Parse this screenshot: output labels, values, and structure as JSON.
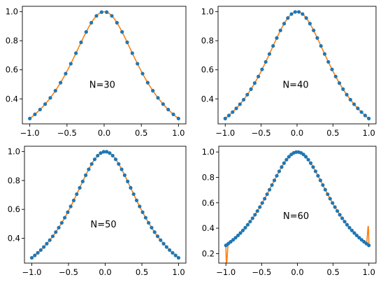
{
  "chart_data": [
    {
      "type": "line",
      "annotation": "N=30",
      "n_points": 30,
      "xlim": [
        -1.1,
        1.1
      ],
      "ylim": [
        0.228,
        1.037
      ],
      "xticks": [
        -1.0,
        -0.5,
        0.0,
        0.5,
        1.0
      ],
      "xtick_labels": [
        "−1.0",
        "−0.5",
        "0.0",
        "0.5",
        "1.0"
      ],
      "yticks": [
        0.4,
        0.6,
        0.8,
        1.0
      ],
      "ytick_labels": [
        "0.4",
        "0.6",
        "0.8",
        "1.0"
      ],
      "series": [
        {
          "kind": "markers",
          "color": "#1f77b4",
          "function": "1/(1+25*x^2/9)"
        },
        {
          "kind": "line",
          "color": "#ff7f0e",
          "function": "interpolant",
          "endpoint_oscillation": 0
        }
      ]
    },
    {
      "type": "line",
      "annotation": "N=40",
      "n_points": 40,
      "xlim": [
        -1.1,
        1.1
      ],
      "ylim": [
        0.228,
        1.037
      ],
      "xticks": [
        -1.0,
        -0.5,
        0.0,
        0.5,
        1.0
      ],
      "xtick_labels": [
        "−1.0",
        "−0.5",
        "0.0",
        "0.5",
        "1.0"
      ],
      "yticks": [
        0.4,
        0.6,
        0.8,
        1.0
      ],
      "ytick_labels": [
        "0.4",
        "0.6",
        "0.8",
        "1.0"
      ],
      "series": [
        {
          "kind": "markers",
          "color": "#1f77b4",
          "function": "1/(1+25*x^2/9)"
        },
        {
          "kind": "line",
          "color": "#ff7f0e",
          "function": "interpolant",
          "endpoint_oscillation": 0
        }
      ]
    },
    {
      "type": "line",
      "annotation": "N=50",
      "n_points": 50,
      "xlim": [
        -1.1,
        1.1
      ],
      "ylim": [
        0.228,
        1.037
      ],
      "xticks": [
        -1.0,
        -0.5,
        0.0,
        0.5,
        1.0
      ],
      "xtick_labels": [
        "−1.0",
        "−0.5",
        "0.0",
        "0.5",
        "1.0"
      ],
      "yticks": [
        0.4,
        0.6,
        0.8,
        1.0
      ],
      "ytick_labels": [
        "0.4",
        "0.6",
        "0.8",
        "1.0"
      ],
      "series": [
        {
          "kind": "markers",
          "color": "#1f77b4",
          "function": "1/(1+25*x^2/9)"
        },
        {
          "kind": "line",
          "color": "#ff7f0e",
          "function": "interpolant",
          "endpoint_oscillation": 0
        }
      ]
    },
    {
      "type": "line",
      "annotation": "N=60",
      "n_points": 60,
      "xlim": [
        -1.1,
        1.1
      ],
      "ylim": [
        0.125,
        1.045
      ],
      "xticks": [
        -1.0,
        -0.5,
        0.0,
        0.5,
        1.0
      ],
      "xtick_labels": [
        "−1.0",
        "−0.5",
        "0.0",
        "0.5",
        "1.0"
      ],
      "yticks": [
        0.2,
        0.4,
        0.6,
        0.8,
        1.0
      ],
      "ytick_labels": [
        "0.2",
        "0.4",
        "0.6",
        "0.8",
        "1.0"
      ],
      "series": [
        {
          "kind": "markers",
          "color": "#1f77b4",
          "function": "1/(1+25*x^2/9)"
        },
        {
          "kind": "line",
          "color": "#ff7f0e",
          "function": "interpolant",
          "endpoint_oscillation": 0.47
        }
      ]
    }
  ]
}
